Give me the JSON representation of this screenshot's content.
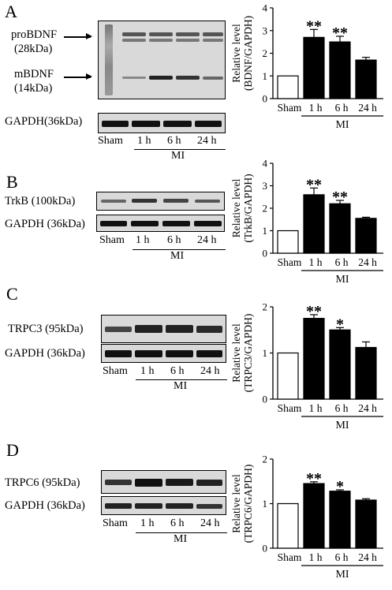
{
  "panels": [
    {
      "letter": "A",
      "labels": {
        "probdnf": "proBDNF",
        "probdnf_kda": "(28kDa)",
        "mbdnf": "mBDNF",
        "mbdnf_kda": "(14kDa)",
        "gapdh": "GAPDH(36kDa)"
      },
      "lanes": [
        "Sham",
        "1 h",
        "6 h",
        "24 h"
      ],
      "group": "MI"
    },
    {
      "letter": "B",
      "labels": {
        "target": "TrkB (100kDa)",
        "gapdh": "GAPDH (36kDa)"
      },
      "lanes": [
        "Sham",
        "1 h",
        "6 h",
        "24 h"
      ],
      "group": "MI"
    },
    {
      "letter": "C",
      "labels": {
        "target": "TRPC3 (95kDa)",
        "gapdh": "GAPDH (36kDa)"
      },
      "lanes": [
        "Sham",
        "1 h",
        "6 h",
        "24 h"
      ],
      "group": "MI"
    },
    {
      "letter": "D",
      "labels": {
        "target": "TRPC6 (95kDa)",
        "gapdh": "GAPDH (36kDa)"
      },
      "lanes": [
        "Sham",
        "1 h",
        "6 h",
        "24 h"
      ],
      "group": "MI"
    }
  ],
  "chart_data": [
    {
      "type": "bar",
      "ylabel": [
        "Relative level",
        "(BDNF/GAPDH)"
      ],
      "categories": [
        "Sham",
        "1 h",
        "6 h",
        "24 h"
      ],
      "values": [
        1.0,
        2.7,
        2.5,
        1.7
      ],
      "errors": [
        0.0,
        0.35,
        0.25,
        0.12
      ],
      "significance": [
        "",
        "**",
        "**",
        ""
      ],
      "ylim": [
        0,
        4
      ],
      "yticks": [
        0,
        1,
        2,
        3,
        4
      ],
      "group_label": "MI",
      "colors": [
        "#ffffff",
        "#000000",
        "#000000",
        "#000000"
      ]
    },
    {
      "type": "bar",
      "ylabel": [
        "Relative level",
        "(TrkB/GAPDH)"
      ],
      "categories": [
        "Sham",
        "1 h",
        "6 h",
        "24 h"
      ],
      "values": [
        1.0,
        2.6,
        2.2,
        1.55
      ],
      "errors": [
        0.0,
        0.3,
        0.15,
        0.05
      ],
      "significance": [
        "",
        "**",
        "**",
        ""
      ],
      "ylim": [
        0,
        4
      ],
      "yticks": [
        0,
        1,
        2,
        3,
        4
      ],
      "group_label": "MI",
      "colors": [
        "#ffffff",
        "#000000",
        "#000000",
        "#000000"
      ]
    },
    {
      "type": "bar",
      "ylabel": [
        "Relative level",
        "(TRPC3/GAPDH)"
      ],
      "categories": [
        "Sham",
        "1 h",
        "6 h",
        "24 h"
      ],
      "values": [
        1.0,
        1.75,
        1.5,
        1.12
      ],
      "errors": [
        0.0,
        0.08,
        0.05,
        0.12
      ],
      "significance": [
        "",
        "**",
        "*",
        ""
      ],
      "ylim": [
        0,
        2
      ],
      "yticks": [
        0,
        1,
        2
      ],
      "group_label": "MI",
      "colors": [
        "#ffffff",
        "#000000",
        "#000000",
        "#000000"
      ]
    },
    {
      "type": "bar",
      "ylabel": [
        "Relative level",
        "(TRPC6/GAPDH)"
      ],
      "categories": [
        "Sham",
        "1 h",
        "6 h",
        "24 h"
      ],
      "values": [
        1.0,
        1.45,
        1.28,
        1.08
      ],
      "errors": [
        0.0,
        0.04,
        0.03,
        0.03
      ],
      "significance": [
        "",
        "**",
        "*",
        ""
      ],
      "ylim": [
        0,
        2
      ],
      "yticks": [
        0,
        1,
        2
      ],
      "group_label": "MI",
      "colors": [
        "#ffffff",
        "#000000",
        "#000000",
        "#000000"
      ]
    }
  ]
}
